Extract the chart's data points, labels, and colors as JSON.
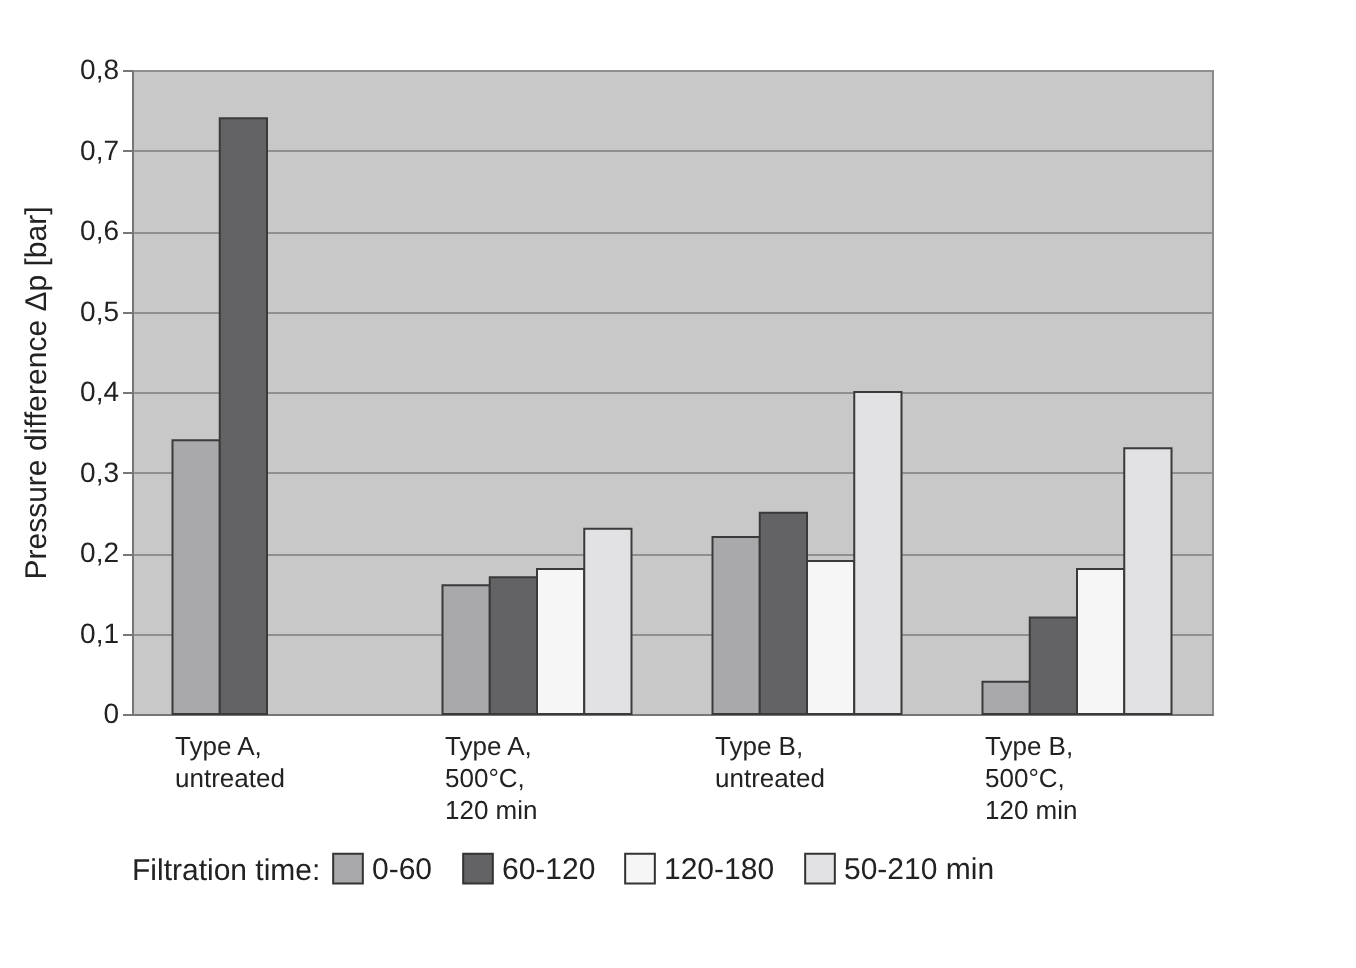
{
  "chart_data": {
    "type": "bar",
    "ylabel": "Pressure difference Δp [bar]",
    "legend_title": "Filtration time:",
    "categories": [
      "Type A,\nuntreated",
      "Type A,\n500°C,\n120 min",
      "Type B,\nuntreated",
      "Type B,\n500°C,\n120 min"
    ],
    "series": [
      {
        "name": "0-60",
        "color": "#a9a9ab",
        "values": [
          0.34,
          0.16,
          0.22,
          0.04
        ]
      },
      {
        "name": "60-120",
        "color": "#636365",
        "values": [
          0.74,
          0.17,
          0.25,
          0.12
        ]
      },
      {
        "name": "120-180",
        "color": "#f6f6f6",
        "values": [
          null,
          0.18,
          0.19,
          0.18
        ]
      },
      {
        "name": "50-210  min",
        "color": "#e2e2e4",
        "values": [
          null,
          0.23,
          0.4,
          0.33
        ]
      }
    ],
    "ylim": [
      0,
      0.8
    ],
    "yticks": [
      {
        "value": 0,
        "label": "0"
      },
      {
        "value": 0.1,
        "label": "0,1"
      },
      {
        "value": 0.2,
        "label": "0,2"
      },
      {
        "value": 0.3,
        "label": "0,3"
      },
      {
        "value": 0.4,
        "label": "0,4"
      },
      {
        "value": 0.5,
        "label": "0,5"
      },
      {
        "value": 0.6,
        "label": "0,6"
      },
      {
        "value": 0.7,
        "label": "0,7"
      },
      {
        "value": 0.8,
        "label": "0,8"
      }
    ],
    "grid": "y",
    "legend": "bottom"
  }
}
